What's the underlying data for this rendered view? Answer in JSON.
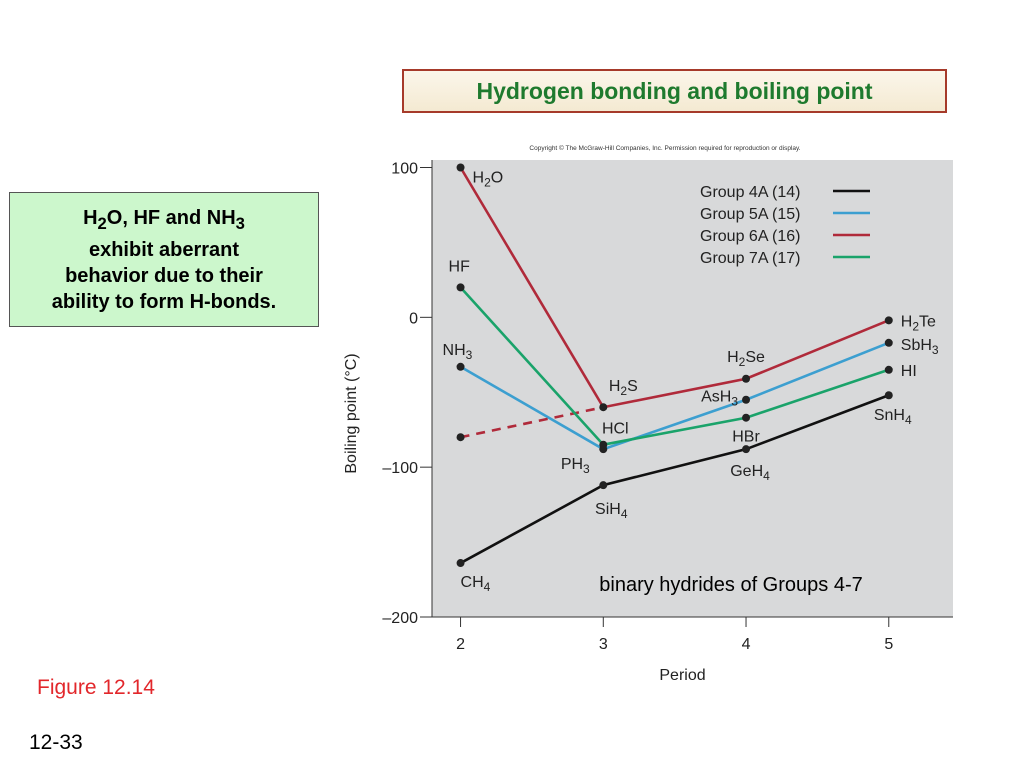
{
  "slide": {
    "title": "Hydrogen bonding and boiling point",
    "note_lines": [
      [
        "H",
        "2",
        "O, HF and NH",
        "3"
      ],
      "exhibit aberrant",
      "behavior due to their",
      "ability to form H-bonds."
    ],
    "figure_label": "Figure 12.14",
    "slide_number": "12-33",
    "copyright": "Copyright © The McGraw-Hill Companies, Inc. Permission required for reproduction or display."
  },
  "colors": {
    "title_green": "#1e7a2e",
    "note_bg": "#ccf7cc",
    "figure_red": "#e2272b",
    "plot_bg": "#d8d9da",
    "group4A": "#111111",
    "group5A": "#3c9fd0",
    "group6A": "#b02a3a",
    "group7A": "#1aa36a"
  },
  "chart_data": {
    "type": "line",
    "xlabel": "Period",
    "ylabel": "Boiling point (°C)",
    "x_ticks": [
      2,
      3,
      4,
      5
    ],
    "y_ticks": [
      100,
      0,
      -100,
      -200
    ],
    "y_tick_labels": [
      "100",
      "0",
      "–100",
      "–200"
    ],
    "xlim": [
      1.8,
      5.45
    ],
    "ylim": [
      -200,
      105
    ],
    "grid": false,
    "legend_position": "top-right",
    "annotation": "binary hydrides of Groups 4-7",
    "series": [
      {
        "name": "Group 4A (14)",
        "color": "#111111",
        "points": [
          {
            "x": 2,
            "y": -164,
            "label": [
              "CH",
              "4"
            ]
          },
          {
            "x": 3,
            "y": -112,
            "label": [
              "SiH",
              "4"
            ]
          },
          {
            "x": 4,
            "y": -88,
            "label": [
              "GeH",
              "4"
            ]
          },
          {
            "x": 5,
            "y": -52,
            "label": [
              "SnH",
              "4"
            ]
          }
        ]
      },
      {
        "name": "Group 5A (15)",
        "color": "#3c9fd0",
        "points": [
          {
            "x": 2,
            "y": -33,
            "label": [
              "NH",
              "3"
            ]
          },
          {
            "x": 3,
            "y": -88,
            "label": [
              "PH",
              "3"
            ]
          },
          {
            "x": 4,
            "y": -55,
            "label": [
              "AsH",
              "3"
            ]
          },
          {
            "x": 5,
            "y": -17,
            "label": [
              "SbH",
              "3"
            ]
          }
        ]
      },
      {
        "name": "Group 6A (16)",
        "color": "#b02a3a",
        "points": [
          {
            "x": 2,
            "y": 100,
            "label": [
              "H",
              "2",
              "O"
            ]
          },
          {
            "x": 3,
            "y": -60,
            "label": [
              "H",
              "2",
              "S"
            ]
          },
          {
            "x": 4,
            "y": -41,
            "label": [
              "H",
              "2",
              "Se"
            ]
          },
          {
            "x": 5,
            "y": -2,
            "label": [
              "H",
              "2",
              "Te"
            ]
          }
        ],
        "dashed_extrapolation": {
          "x": 2,
          "y": -80
        }
      },
      {
        "name": "Group 7A (17)",
        "color": "#1aa36a",
        "points": [
          {
            "x": 2,
            "y": 20,
            "label": [
              "HF"
            ]
          },
          {
            "x": 3,
            "y": -85,
            "label": [
              "HCl"
            ]
          },
          {
            "x": 4,
            "y": -67,
            "label": [
              "HBr"
            ]
          },
          {
            "x": 5,
            "y": -35,
            "label": [
              "HI"
            ]
          }
        ]
      }
    ]
  }
}
